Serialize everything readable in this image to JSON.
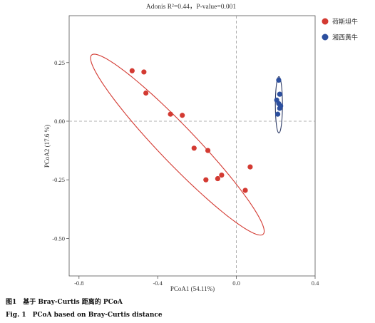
{
  "chart_data": {
    "type": "scatter",
    "title": "Adonis R²=0.44，P-value=0.001",
    "xlabel": "PCoA1 (54.11%)",
    "ylabel": "PCoA2 (17.6 %)",
    "xlim": [
      -0.85,
      0.4
    ],
    "ylim": [
      -0.66,
      0.45
    ],
    "x_ticks": [
      -0.8,
      -0.4,
      0.0,
      0.4
    ],
    "x_tick_labels": [
      "-0.8",
      "-0.4",
      "0.0",
      "0.4"
    ],
    "y_ticks": [
      -0.5,
      -0.25,
      0.0,
      0.25
    ],
    "y_tick_labels": [
      "-0.50",
      "-0.25",
      "0.00",
      "0.25"
    ],
    "grid": false,
    "reference_lines": {
      "x": 0,
      "y": 0,
      "style": "dashed"
    },
    "legend_placement": "right",
    "series": [
      {
        "name": "荷斯坦牛",
        "color": "#d33a32",
        "points": [
          {
            "x": -0.53,
            "y": 0.215
          },
          {
            "x": -0.47,
            "y": 0.21
          },
          {
            "x": -0.46,
            "y": 0.12
          },
          {
            "x": -0.335,
            "y": 0.03
          },
          {
            "x": -0.275,
            "y": 0.025
          },
          {
            "x": -0.215,
            "y": -0.115
          },
          {
            "x": -0.145,
            "y": -0.125
          },
          {
            "x": -0.155,
            "y": -0.25
          },
          {
            "x": -0.095,
            "y": -0.245
          },
          {
            "x": -0.075,
            "y": -0.23
          },
          {
            "x": 0.045,
            "y": -0.295
          },
          {
            "x": 0.07,
            "y": -0.195
          }
        ],
        "ellipse": {
          "cx": -0.3,
          "cy": -0.1,
          "a": 0.58,
          "b": 0.085,
          "angle_deg": -41
        }
      },
      {
        "name": "湘西黄牛",
        "color": "#2c4f9e",
        "points": [
          {
            "x": 0.215,
            "y": 0.175
          },
          {
            "x": 0.22,
            "y": 0.115
          },
          {
            "x": 0.205,
            "y": 0.09
          },
          {
            "x": 0.215,
            "y": 0.075
          },
          {
            "x": 0.225,
            "y": 0.065
          },
          {
            "x": 0.22,
            "y": 0.055
          },
          {
            "x": 0.21,
            "y": 0.03
          }
        ],
        "ellipse": {
          "cx": 0.216,
          "cy": 0.07,
          "a": 0.018,
          "b": 0.12,
          "angle_deg": 0
        }
      }
    ],
    "ellipse_stroke": "#2c3a66"
  },
  "captions": {
    "cn": "图1　基于 Bray-Curtis 距离的 PCoA",
    "en": "Fig. 1　PCoA based on Bray-Curtis distance"
  }
}
